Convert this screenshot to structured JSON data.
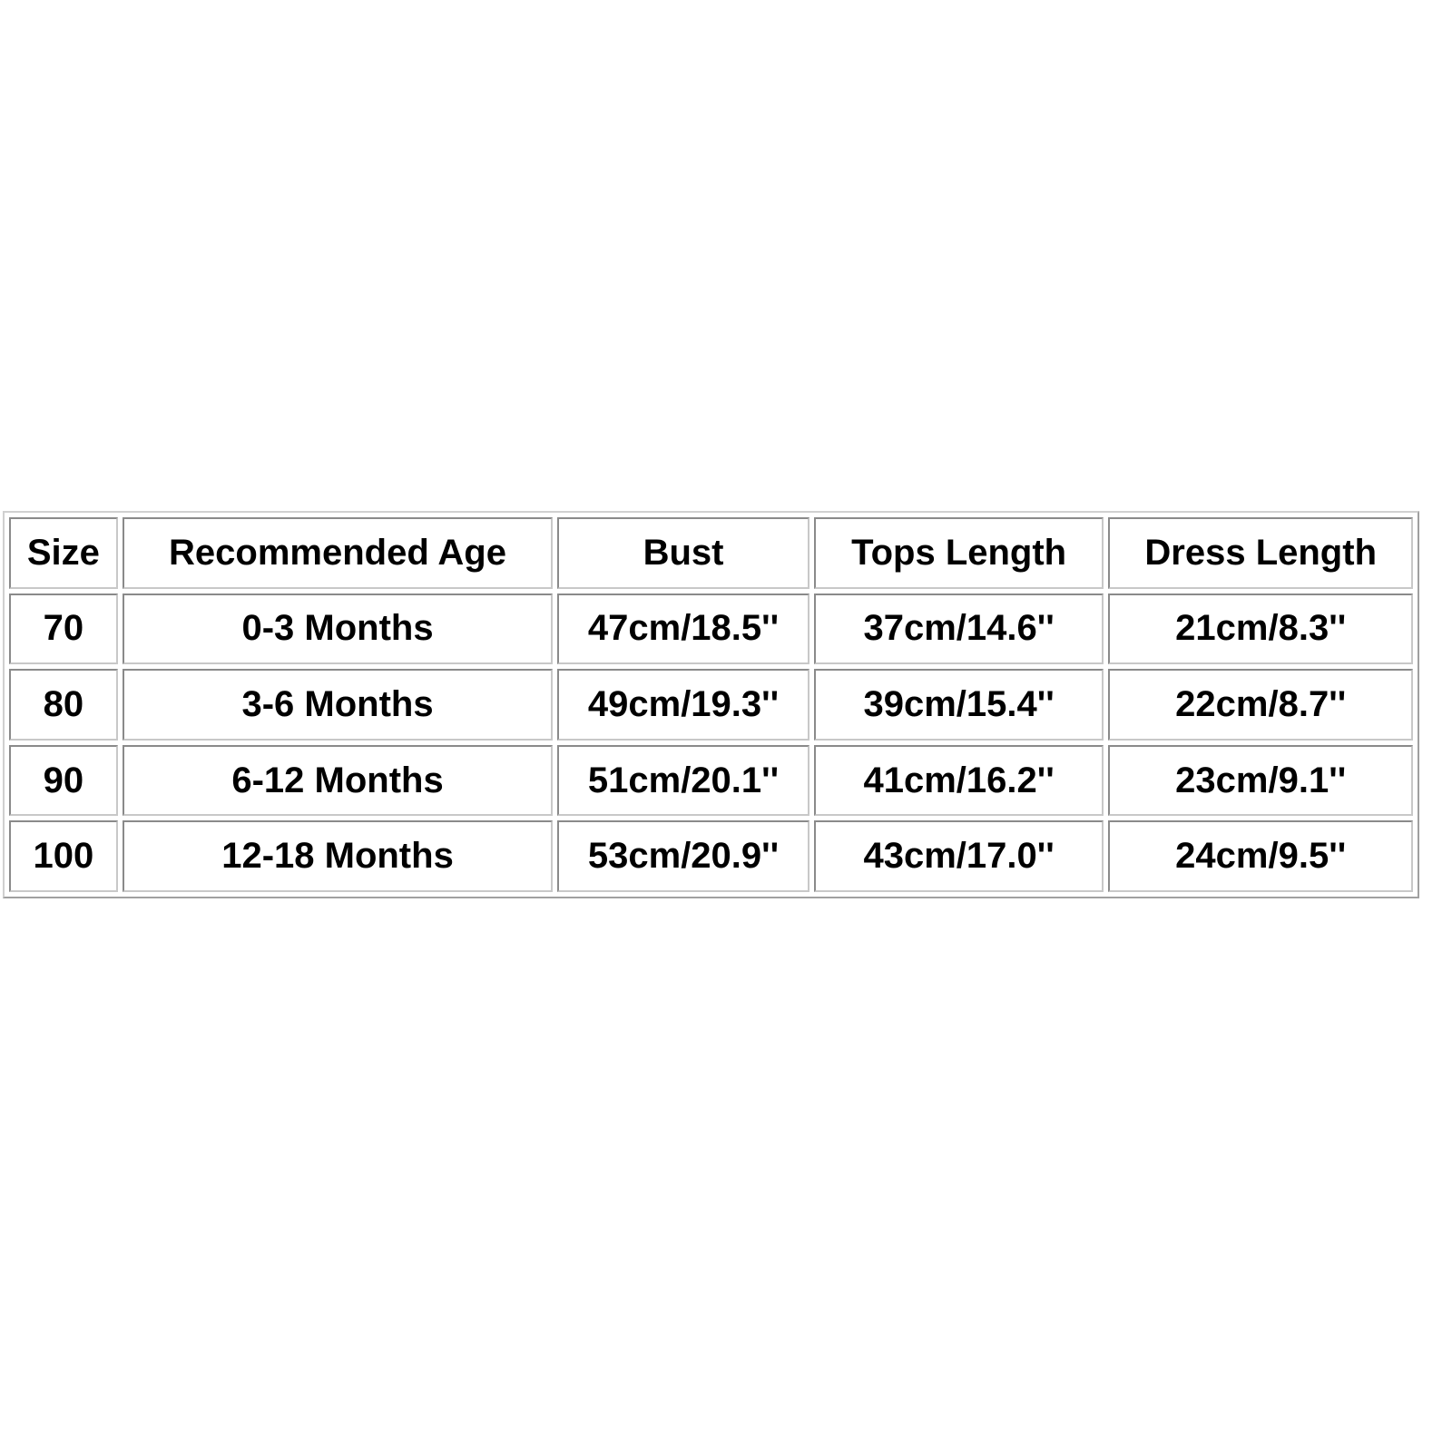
{
  "size_chart": {
    "headers": [
      "Size",
      "Recommended Age",
      "Bust",
      "Tops Length",
      "Dress Length"
    ],
    "rows": [
      [
        "70",
        "0-3 Months",
        "47cm/18.5''",
        "37cm/14.6''",
        "21cm/8.3''"
      ],
      [
        "80",
        "3-6 Months",
        "49cm/19.3''",
        "39cm/15.4''",
        "22cm/8.7''"
      ],
      [
        "90",
        "6-12 Months",
        "51cm/20.1''",
        "41cm/16.2''",
        "23cm/9.1''"
      ],
      [
        "100",
        "12-18 Months",
        "53cm/20.9''",
        "43cm/17.0''",
        "24cm/9.5''"
      ]
    ]
  }
}
